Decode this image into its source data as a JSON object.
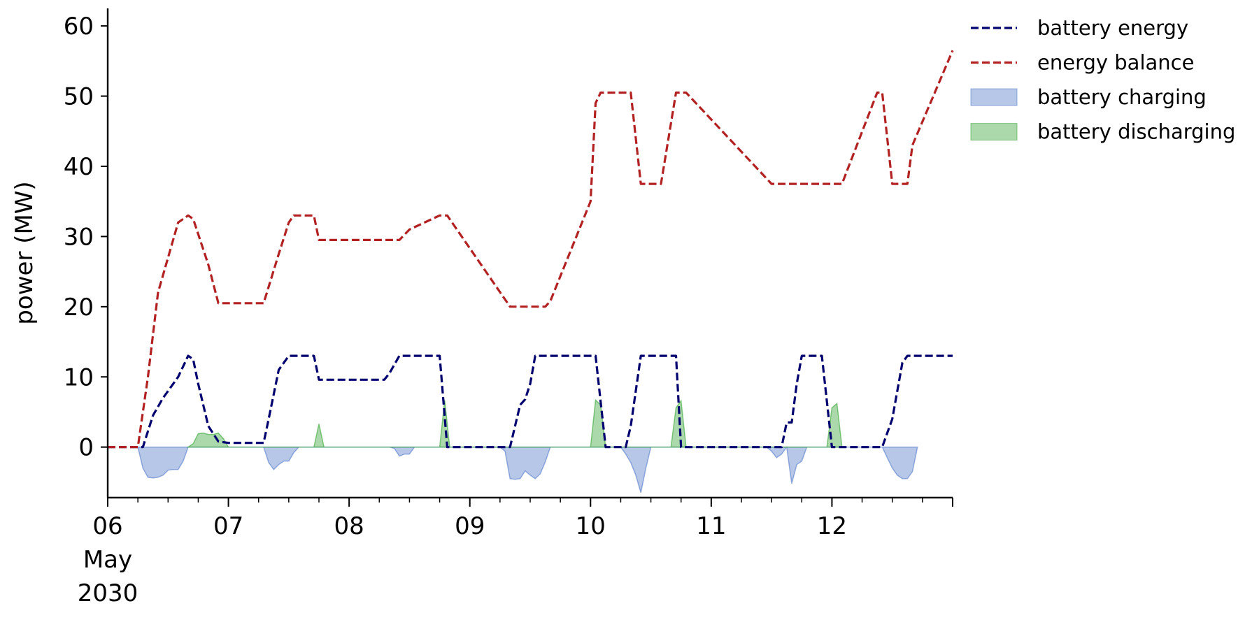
{
  "chart_data": {
    "type": "line",
    "title": "",
    "xlabel": "",
    "ylabel": "power (MW)",
    "xlim": [
      "2030-05-06 00:00",
      "2030-05-13 00:00"
    ],
    "ylim": [
      -7.2,
      62.5
    ],
    "grid": false,
    "legend_position": "outside-top-right",
    "x_ticks": [
      {
        "at": "2030-05-06 00:00",
        "lines": [
          "06",
          "May",
          "2030"
        ]
      },
      {
        "at": "2030-05-07 00:00",
        "lines": [
          "07"
        ]
      },
      {
        "at": "2030-05-08 00:00",
        "lines": [
          "08"
        ]
      },
      {
        "at": "2030-05-09 00:00",
        "lines": [
          "09"
        ]
      },
      {
        "at": "2030-05-10 00:00",
        "lines": [
          "10"
        ]
      },
      {
        "at": "2030-05-11 00:00",
        "lines": [
          "11"
        ]
      },
      {
        "at": "2030-05-12 00:00",
        "lines": [
          "12"
        ]
      }
    ],
    "y_ticks": [
      0,
      10,
      20,
      30,
      40,
      50,
      60
    ],
    "series": [
      {
        "name": "battery energy",
        "kind": "line",
        "style": "dashed",
        "color": "#00006e",
        "x": [
          "2030-05-06 00:00",
          "2030-05-06 06:00",
          "2030-05-06 07:00",
          "2030-05-06 09:00",
          "2030-05-06 11:00",
          "2030-05-06 14:00",
          "2030-05-06 16:00",
          "2030-05-06 17:00",
          "2030-05-06 18:00",
          "2030-05-06 20:00",
          "2030-05-06 22:00",
          "2030-05-07 00:00",
          "2030-05-07 02:00",
          "2030-05-07 07:00",
          "2030-05-07 08:00",
          "2030-05-07 10:00",
          "2030-05-07 12:00",
          "2030-05-07 13:00",
          "2030-05-07 14:00",
          "2030-05-07 17:00",
          "2030-05-07 18:00",
          "2030-05-08 07:00",
          "2030-05-08 08:00",
          "2030-05-08 10:00",
          "2030-05-08 12:00",
          "2030-05-08 18:00",
          "2030-05-08 19:30",
          "2030-05-09 07:00",
          "2030-05-09 08:00",
          "2030-05-09 10:00",
          "2030-05-09 11:00",
          "2030-05-09 12:00",
          "2030-05-09 13:00",
          "2030-05-09 15:00",
          "2030-05-09 16:00",
          "2030-05-10 00:00",
          "2030-05-10 01:00",
          "2030-05-10 03:00",
          "2030-05-10 04:00",
          "2030-05-10 07:00",
          "2030-05-10 08:00",
          "2030-05-10 10:00",
          "2030-05-10 12:00",
          "2030-05-10 17:00",
          "2030-05-10 18:00",
          "2030-05-10 19:00",
          "2030-05-11 10:00",
          "2030-05-11 12:00",
          "2030-05-11 13:00",
          "2030-05-11 14:00",
          "2030-05-11 15:00",
          "2030-05-11 16:00",
          "2030-05-11 17:00",
          "2030-05-11 18:00",
          "2030-05-11 21:00",
          "2030-05-11 22:00",
          "2030-05-12 00:00",
          "2030-05-12 01:00",
          "2030-05-12 02:00",
          "2030-05-12 09:00",
          "2030-05-12 10:00",
          "2030-05-12 12:00",
          "2030-05-12 14:00",
          "2030-05-12 15:00",
          "2030-05-12 16:00",
          "2030-05-12 24:00"
        ],
        "y": [
          0,
          0,
          0,
          4.5,
          7,
          10,
          13,
          12.5,
          9,
          3,
          0.8,
          0.6,
          0.6,
          0.6,
          4,
          11,
          13,
          13,
          13,
          13,
          9.6,
          9.6,
          10.5,
          13,
          13,
          13,
          0,
          0,
          0,
          6,
          6.8,
          9,
          13,
          13,
          13,
          13,
          13,
          0,
          0,
          0,
          3,
          13,
          13,
          13,
          0,
          0,
          0,
          0,
          0,
          0,
          3.5,
          3.5,
          9,
          13,
          13,
          13,
          0,
          0,
          0,
          0,
          0,
          4,
          12,
          13,
          13,
          13
        ]
      },
      {
        "name": "energy balance",
        "kind": "line",
        "style": "dashed",
        "color": "#b22222",
        "x": [
          "2030-05-06 00:00",
          "2030-05-06 06:00",
          "2030-05-06 08:00",
          "2030-05-06 10:00",
          "2030-05-06 14:00",
          "2030-05-06 16:00",
          "2030-05-06 17:00",
          "2030-05-06 20:00",
          "2030-05-06 22:00",
          "2030-05-07 00:00",
          "2030-05-07 07:00",
          "2030-05-07 10:00",
          "2030-05-07 12:00",
          "2030-05-07 13:00",
          "2030-05-07 14:00",
          "2030-05-07 17:00",
          "2030-05-07 18:00",
          "2030-05-08 08:00",
          "2030-05-08 10:00",
          "2030-05-08 12:00",
          "2030-05-08 18:00",
          "2030-05-08 19:30",
          "2030-05-09 08:00",
          "2030-05-09 09:00",
          "2030-05-09 12:00",
          "2030-05-09 15:00",
          "2030-05-09 16:00",
          "2030-05-10 00:00",
          "2030-05-10 01:00",
          "2030-05-10 02:00",
          "2030-05-10 03:00",
          "2030-05-10 04:00",
          "2030-05-10 06:00",
          "2030-05-10 08:00",
          "2030-05-10 10:00",
          "2030-05-10 11:00",
          "2030-05-10 12:00",
          "2030-05-10 13:00",
          "2030-05-10 14:00",
          "2030-05-10 17:00",
          "2030-05-10 19:00",
          "2030-05-11 12:00",
          "2030-05-11 13:00",
          "2030-05-11 14:00",
          "2030-05-11 15:00",
          "2030-05-11 16:00",
          "2030-05-11 17:00",
          "2030-05-11 18:00",
          "2030-05-11 21:00",
          "2030-05-11 22:00",
          "2030-05-12 00:00",
          "2030-05-12 01:00",
          "2030-05-12 02:00",
          "2030-05-12 09:00",
          "2030-05-12 10:00",
          "2030-05-12 12:00",
          "2030-05-12 14:00",
          "2030-05-12 15:00",
          "2030-05-12 16:00",
          "2030-05-12 24:00"
        ],
        "y": [
          0,
          0,
          10,
          22,
          32,
          33,
          32.5,
          26,
          20.5,
          20.5,
          20.5,
          27.5,
          32,
          33,
          33,
          33,
          29.5,
          29.5,
          29.5,
          31,
          33,
          33,
          20,
          20,
          20,
          20,
          20.8,
          35,
          49,
          50.5,
          50.5,
          50.5,
          50.5,
          50.5,
          37.5,
          37.5,
          37.5,
          37.5,
          37.5,
          50.5,
          50.5,
          37.5,
          37.5,
          37.5,
          37.5,
          37.5,
          37.5,
          37.5,
          37.5,
          37.5,
          37.5,
          37.5,
          37.5,
          50.5,
          50.5,
          37.5,
          37.5,
          37.5,
          43,
          56.5
        ]
      },
      {
        "name": "battery charging",
        "kind": "area",
        "color": "#4c72c6",
        "fill_opacity": 0.4,
        "x": [
          "2030-05-06 06:00",
          "2030-05-06 07:00",
          "2030-05-06 08:00",
          "2030-05-06 09:00",
          "2030-05-06 10:00",
          "2030-05-06 11:00",
          "2030-05-06 12:00",
          "2030-05-06 13:00",
          "2030-05-06 14:00",
          "2030-05-06 15:00",
          "2030-05-06 16:00",
          "2030-05-06 17:00",
          "2030-05-07 07:00",
          "2030-05-07 08:00",
          "2030-05-07 09:00",
          "2030-05-07 10:00",
          "2030-05-07 11:00",
          "2030-05-07 12:00",
          "2030-05-07 13:00",
          "2030-05-07 14:00",
          "2030-05-08 08:00",
          "2030-05-08 09:00",
          "2030-05-08 10:00",
          "2030-05-08 11:00",
          "2030-05-08 12:00",
          "2030-05-08 13:00",
          "2030-05-09 06:00",
          "2030-05-09 07:00",
          "2030-05-09 08:00",
          "2030-05-09 09:00",
          "2030-05-09 10:00",
          "2030-05-09 11:00",
          "2030-05-09 12:00",
          "2030-05-09 13:00",
          "2030-05-09 14:00",
          "2030-05-09 15:00",
          "2030-05-09 16:00",
          "2030-05-10 06:00",
          "2030-05-10 07:00",
          "2030-05-10 08:00",
          "2030-05-10 09:00",
          "2030-05-10 10:00",
          "2030-05-10 11:00",
          "2030-05-10 12:00",
          "2030-05-11 11:00",
          "2030-05-11 12:00",
          "2030-05-11 13:00",
          "2030-05-11 14:00",
          "2030-05-11 15:00",
          "2030-05-11 16:00",
          "2030-05-11 17:00",
          "2030-05-11 18:00",
          "2030-05-11 19:00",
          "2030-05-12 10:00",
          "2030-05-12 11:00",
          "2030-05-12 12:00",
          "2030-05-12 13:00",
          "2030-05-12 14:00",
          "2030-05-12 15:00",
          "2030-05-12 16:00",
          "2030-05-12 17:00"
        ],
        "y": [
          0,
          -3,
          -4.3,
          -4.4,
          -4.3,
          -4,
          -3.3,
          -3.2,
          -3.2,
          -2,
          0,
          0,
          0,
          -2.2,
          -3.2,
          -2.5,
          -2,
          -2,
          -0.8,
          0,
          0,
          -0.2,
          -1.3,
          -1,
          -1,
          0,
          0,
          -0.6,
          -4.5,
          -4.6,
          -4.5,
          -3.4,
          -4,
          -4.5,
          -3.8,
          -2.1,
          0,
          0,
          -1,
          -2.2,
          -4,
          -6.5,
          -3,
          0,
          0,
          -0.6,
          -1.5,
          -1,
          0,
          -5.2,
          -2.5,
          -2,
          0,
          0,
          -1.5,
          -3,
          -4,
          -4.5,
          -4.5,
          -3.5,
          0
        ]
      },
      {
        "name": "battery discharging",
        "kind": "area",
        "color": "#2ca02c",
        "fill_opacity": 0.4,
        "x": [
          "2030-05-06 16:00",
          "2030-05-06 17:00",
          "2030-05-06 18:00",
          "2030-05-06 19:00",
          "2030-05-06 20:00",
          "2030-05-06 21:00",
          "2030-05-06 22:00",
          "2030-05-06 23:00",
          "2030-05-07 00:00",
          "2030-05-07 17:00",
          "2030-05-07 18:00",
          "2030-05-07 19:00",
          "2030-05-08 18:00",
          "2030-05-08 19:00",
          "2030-05-08 20:00",
          "2030-05-10 00:00",
          "2030-05-10 01:00",
          "2030-05-10 02:00",
          "2030-05-10 03:00",
          "2030-05-10 16:00",
          "2030-05-10 17:00",
          "2030-05-10 18:00",
          "2030-05-10 19:00",
          "2030-05-11 23:00",
          "2030-05-12 00:00",
          "2030-05-12 01:00",
          "2030-05-12 02:00"
        ],
        "y": [
          0,
          0.5,
          1.9,
          2,
          1.8,
          1.8,
          2,
          1.2,
          0,
          0,
          3.3,
          0,
          0,
          6.7,
          0,
          0,
          6.7,
          6,
          0,
          0,
          5.6,
          6.6,
          0,
          0,
          5.6,
          6.2,
          0
        ]
      }
    ]
  }
}
